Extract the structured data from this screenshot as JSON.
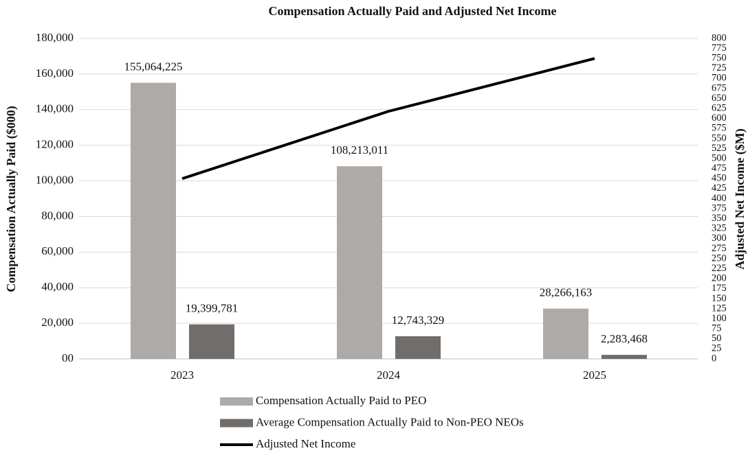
{
  "chart_data": {
    "type": "bar",
    "title": "Compensation Actually Paid and Adjusted Net Income",
    "y_label": "Compensation Actually Paid ($000)",
    "y2_label": "Adjusted Net Income ($M)",
    "categories": [
      "2023",
      "2024",
      "2025"
    ],
    "series": [
      {
        "name": "Compensation Actually Paid to PEO",
        "color": "#aeaaa7",
        "values": [
          155064.225,
          108213.011,
          28266.163
        ],
        "value_labels": [
          "155,064,225",
          "108,213,011",
          "28,266,163"
        ]
      },
      {
        "name": "Average Compensation Actually Paid to Non-PEO NEOs",
        "color": "#716d6b",
        "values": [
          19399.781,
          12743.329,
          2283.468
        ],
        "value_labels": [
          "19,399,781",
          "12,743,329",
          "2,283,468"
        ]
      },
      {
        "name": "Adjusted Net Income",
        "color": "#000000",
        "type": "line",
        "axis": "y2",
        "values": [
          450,
          618,
          750
        ]
      }
    ],
    "ylim": [
      0,
      180000
    ],
    "yticks": [
      {
        "value": 0,
        "label": "00"
      },
      {
        "value": 20000,
        "label": "20,000"
      },
      {
        "value": 40000,
        "label": "40,000"
      },
      {
        "value": 60000,
        "label": "60,000"
      },
      {
        "value": 80000,
        "label": "80,000"
      },
      {
        "value": 100000,
        "label": "100,000"
      },
      {
        "value": 120000,
        "label": "120,000"
      },
      {
        "value": 140000,
        "label": "140,000"
      },
      {
        "value": 160000,
        "label": "160,000"
      },
      {
        "value": 180000,
        "label": "180,000"
      }
    ],
    "y2lim": [
      0,
      800
    ],
    "y2ticks": [
      0,
      25,
      50,
      75,
      100,
      125,
      150,
      175,
      200,
      225,
      250,
      275,
      300,
      325,
      350,
      375,
      400,
      425,
      450,
      475,
      500,
      525,
      550,
      575,
      600,
      625,
      650,
      675,
      700,
      725,
      750,
      775,
      800
    ],
    "grid": true,
    "legend": "bottom"
  }
}
